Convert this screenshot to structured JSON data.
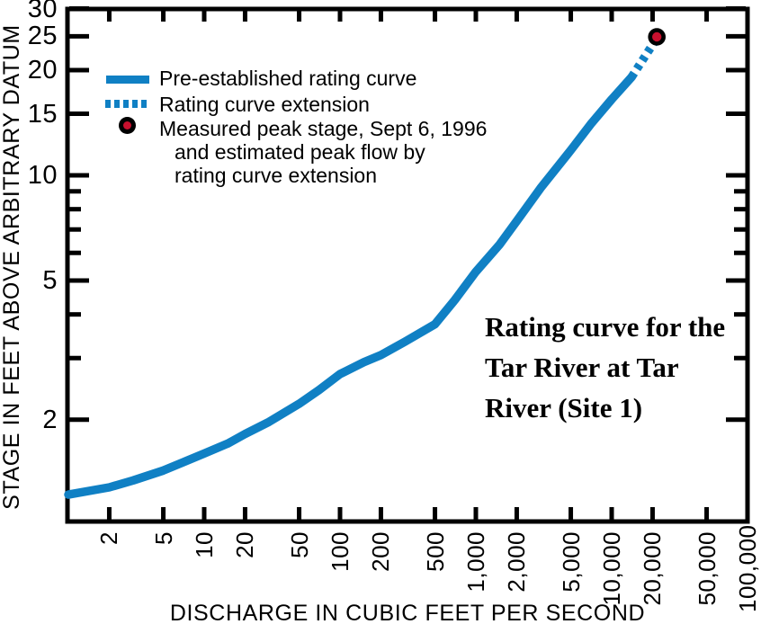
{
  "axes": {
    "x_title": "DISCHARGE IN CUBIC FEET PER SECOND",
    "y_title": "STAGE IN FEET ABOVE ARBITRARY DATUM"
  },
  "legend": {
    "items": [
      {
        "marker": "solid-line-swatch",
        "label": "Pre-established rating curve"
      },
      {
        "marker": "dashed-line-swatch",
        "label": "Rating curve extension"
      },
      {
        "marker": "red-dot-marker",
        "lines": [
          "Measured peak stage, Sept 6, 1996",
          "and estimated peak flow by",
          "rating curve extension"
        ]
      }
    ]
  },
  "annotation": {
    "lines": [
      "Rating curve for the",
      "Tar River at Tar",
      "River (Site 1)"
    ]
  },
  "colors": {
    "curve_blue": "#1080C4",
    "marker_red": "#C8102E",
    "marker_ring": "#000000",
    "axis_black": "#000000"
  },
  "chart_data": {
    "type": "line",
    "title": "Rating curve for the Tar River at Tar River (Site 1)",
    "xlabel": "DISCHARGE IN CUBIC FEET PER SECOND",
    "ylabel": "STAGE IN FEET ABOVE ARBITRARY DATUM",
    "x_scale": "log",
    "y_scale": "log",
    "xlim": [
      1,
      100000
    ],
    "ylim": [
      1,
      30
    ],
    "grid": false,
    "legend_position": "upper-left",
    "x_tick_values": [
      2,
      5,
      10,
      20,
      50,
      100,
      200,
      500,
      1000,
      2000,
      5000,
      10000,
      20000,
      50000,
      100000
    ],
    "x_tick_labels": [
      "2",
      "5",
      "10",
      "20",
      "50",
      "100",
      "200",
      "500",
      "1,000",
      "2,000",
      "5,000",
      "10,000",
      "20,000",
      "50,000",
      "100,000"
    ],
    "y_tick_values": [
      30,
      25,
      20,
      15,
      10,
      5,
      2
    ],
    "y_tick_labels": [
      "30",
      "25",
      "20",
      "15",
      "10",
      "5",
      "2"
    ],
    "y_minor_tick_values": [
      9,
      8,
      7,
      6,
      4,
      3
    ],
    "series": [
      {
        "name": "Pre-established rating curve",
        "style": "solid",
        "points": [
          [
            1,
            1.22
          ],
          [
            2,
            1.28
          ],
          [
            3,
            1.34
          ],
          [
            5,
            1.43
          ],
          [
            7,
            1.51
          ],
          [
            10,
            1.6
          ],
          [
            15,
            1.71
          ],
          [
            20,
            1.82
          ],
          [
            30,
            1.97
          ],
          [
            50,
            2.22
          ],
          [
            70,
            2.43
          ],
          [
            100,
            2.7
          ],
          [
            150,
            2.92
          ],
          [
            200,
            3.06
          ],
          [
            300,
            3.34
          ],
          [
            500,
            3.75
          ],
          [
            700,
            4.4
          ],
          [
            1000,
            5.3
          ],
          [
            1500,
            6.35
          ],
          [
            2000,
            7.4
          ],
          [
            3000,
            9.2
          ],
          [
            5000,
            11.8
          ],
          [
            7000,
            14.0
          ],
          [
            10000,
            16.5
          ],
          [
            14000,
            19.1
          ]
        ]
      },
      {
        "name": "Rating curve extension",
        "style": "dashed",
        "points": [
          [
            14000,
            19.1
          ],
          [
            20500,
            24.0
          ]
        ]
      },
      {
        "name": "Measured peak stage, Sept 6, 1996 and estimated peak flow by rating curve extension",
        "style": "point",
        "points": [
          [
            21500,
            24.9
          ]
        ]
      }
    ]
  }
}
